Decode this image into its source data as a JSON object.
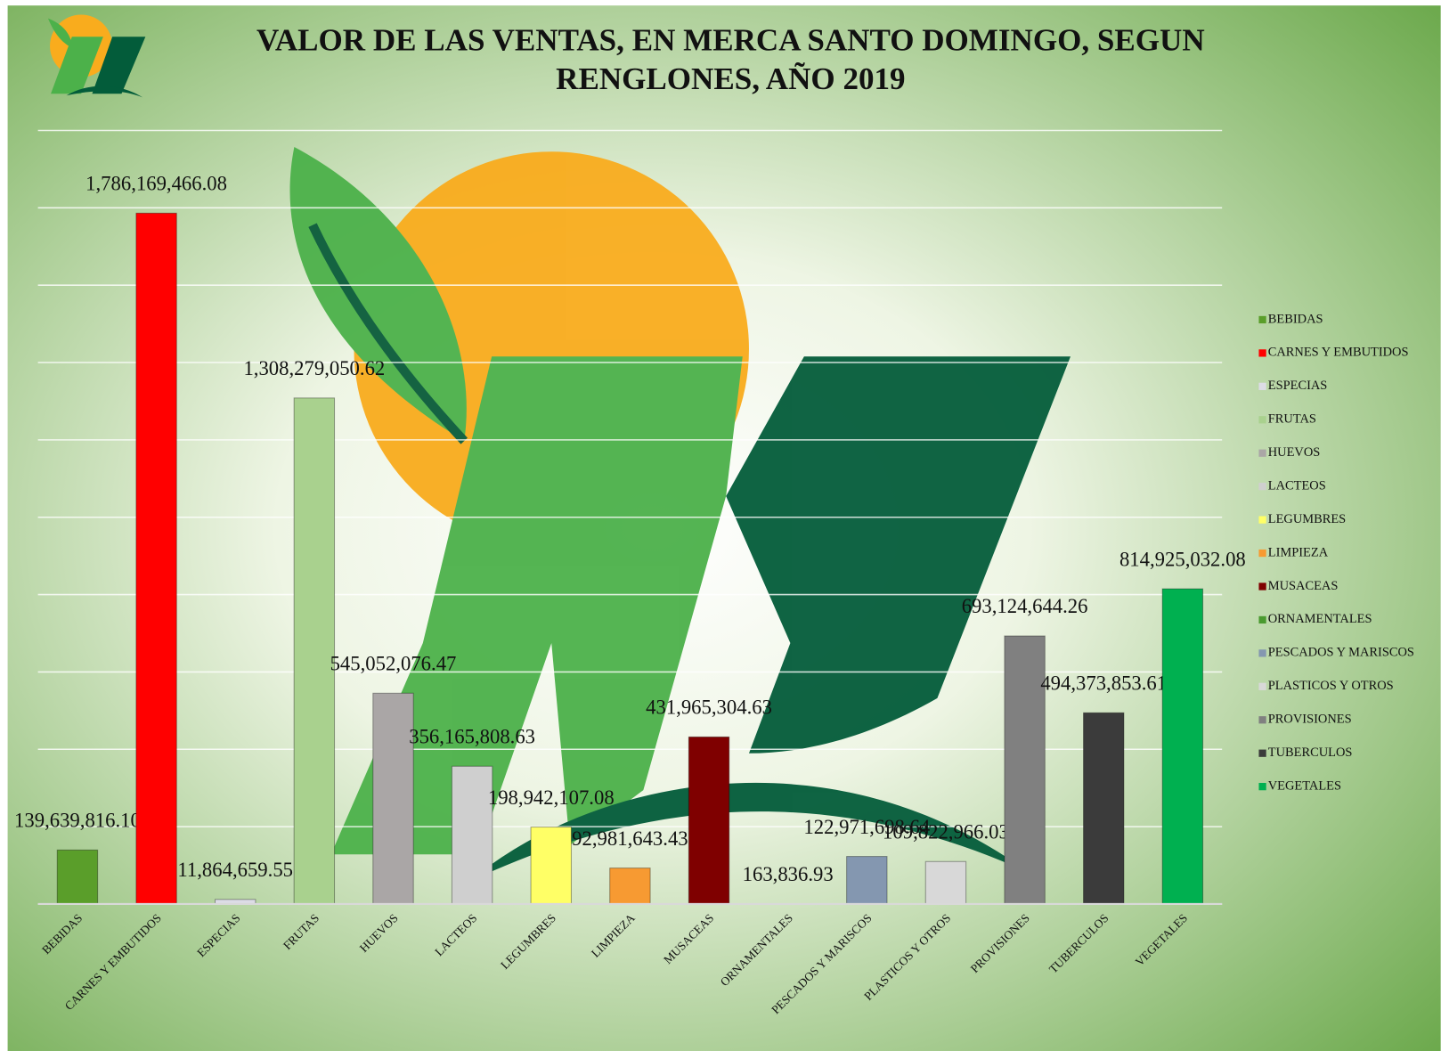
{
  "chart_data": {
    "type": "bar",
    "title": [
      "VALOR DE LAS VENTAS, EN MERCA SANTO DOMINGO, SEGUN",
      "RENGLONES, AÑO 2019"
    ],
    "categories": [
      "BEBIDAS",
      "CARNES Y EMBUTIDOS",
      "ESPECIAS",
      "FRUTAS",
      "HUEVOS",
      "LACTEOS",
      "LEGUMBRES",
      "LIMPIEZA",
      "MUSACEAS",
      "ORNAMENTALES",
      "PESCADOS Y MARISCOS",
      "PLASTICOS Y OTROS",
      "PROVISIONES",
      "TUBERCULOS",
      "VEGETALES"
    ],
    "values": [
      139639816.1,
      1786169466.08,
      11864659.55,
      1308279050.62,
      545052076.47,
      356165808.63,
      198942107.08,
      92981643.43,
      431965304.63,
      163836.93,
      122971698.64,
      109822966.03,
      693124644.26,
      494373853.61,
      814925032.08
    ],
    "value_labels": [
      "139,639,816.10",
      "1,786,169,466.08",
      "11,864,659.55",
      "1,308,279,050.62",
      "545,052,076.47",
      "356,165,808.63",
      "198,942,107.08",
      "92,981,643.43",
      "431,965,304.63",
      "163,836.93",
      "122,971,698.64",
      "109,822,966.03",
      "693,124,644.26",
      "494,373,853.61",
      "814,925,032.08"
    ],
    "colors": [
      "#5a9e2a",
      "#ff0000",
      "#dcdce6",
      "#a9d18e",
      "#aaa6a6",
      "#cfcfcf",
      "#ffff66",
      "#f79a32",
      "#7f0000",
      "#4a9a30",
      "#8497b0",
      "#d8d8d8",
      "#808080",
      "#3b3b3b",
      "#00b050"
    ],
    "ylim": [
      0,
      2000000000
    ],
    "yticks": [
      0,
      200000000,
      400000000,
      600000000,
      800000000,
      1000000000,
      1200000000,
      1400000000,
      1600000000,
      1800000000,
      2000000000
    ],
    "grid": true,
    "legend": "right"
  }
}
